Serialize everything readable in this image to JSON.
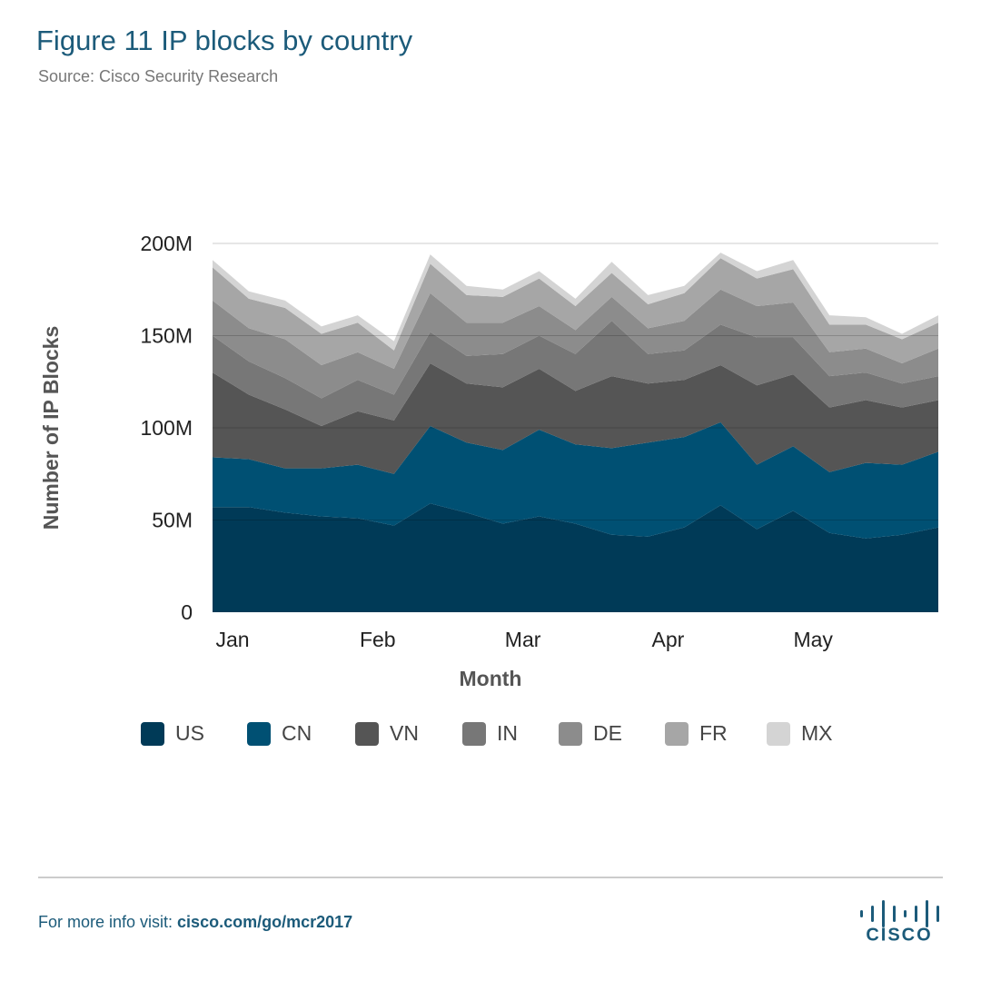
{
  "chart_data": {
    "type": "stacked_area",
    "title": "Figure 11  IP blocks by country",
    "subtitle": "Source: Cisco Security Research",
    "x_label": "Month",
    "y_label": "Number of IP Blocks",
    "categories": [
      "Jan",
      null,
      null,
      null,
      "Feb",
      null,
      null,
      null,
      "Mar",
      null,
      null,
      null,
      "Apr",
      null,
      null,
      null,
      "May",
      null,
      null,
      null,
      null
    ],
    "series": [
      {
        "name": "US",
        "color": "#003a57",
        "values": [
          57000000,
          57000000,
          54000000,
          52000000,
          51000000,
          47000000,
          59000000,
          54000000,
          48000000,
          52000000,
          48000000,
          42000000,
          41000000,
          46000000,
          58000000,
          45000000,
          55000000,
          43000000,
          40000000,
          42000000,
          46000000
        ]
      },
      {
        "name": "CN",
        "color": "#005073",
        "values": [
          27000000,
          26000000,
          24000000,
          26000000,
          29000000,
          28000000,
          42000000,
          38000000,
          40000000,
          47000000,
          43000000,
          47000000,
          51000000,
          49000000,
          45000000,
          35000000,
          35000000,
          33000000,
          41000000,
          38000000,
          41000000
        ]
      },
      {
        "name": "VN",
        "color": "#555555",
        "values": [
          46000000,
          35000000,
          32000000,
          23000000,
          29000000,
          29000000,
          34000000,
          32000000,
          34000000,
          33000000,
          29000000,
          39000000,
          32000000,
          31000000,
          31000000,
          43000000,
          39000000,
          35000000,
          34000000,
          31000000,
          28000000
        ]
      },
      {
        "name": "IN",
        "color": "#777777",
        "values": [
          20000000,
          18000000,
          17000000,
          15000000,
          17000000,
          14000000,
          17000000,
          15000000,
          18000000,
          18000000,
          20000000,
          30000000,
          16000000,
          16000000,
          22000000,
          26000000,
          20000000,
          17000000,
          15000000,
          13000000,
          13000000
        ]
      },
      {
        "name": "DE",
        "color": "#8c8c8c",
        "values": [
          19000000,
          18000000,
          21000000,
          18000000,
          15000000,
          14000000,
          21000000,
          18000000,
          17000000,
          16000000,
          13000000,
          13000000,
          14000000,
          16000000,
          19000000,
          17000000,
          19000000,
          13000000,
          13000000,
          11000000,
          15000000
        ]
      },
      {
        "name": "FR",
        "color": "#a6a6a6",
        "values": [
          18000000,
          16000000,
          17000000,
          17000000,
          16000000,
          10000000,
          16000000,
          15000000,
          14000000,
          15000000,
          13000000,
          13000000,
          13000000,
          15000000,
          17000000,
          15000000,
          18000000,
          15000000,
          13000000,
          13000000,
          14000000
        ]
      },
      {
        "name": "MX",
        "color": "#d4d4d4",
        "values": [
          4000000,
          4000000,
          4000000,
          4000000,
          4000000,
          5000000,
          5000000,
          5000000,
          4000000,
          4000000,
          4000000,
          6000000,
          5000000,
          4000000,
          3000000,
          4000000,
          5000000,
          5000000,
          4000000,
          3000000,
          4000000
        ]
      }
    ],
    "ylim": [
      0,
      200000000
    ],
    "yticks": [
      0,
      {
        "value": 50000000,
        "label": "50M"
      },
      {
        "value": 100000000,
        "label": "100M"
      },
      {
        "value": 150000000,
        "label": "150M"
      },
      {
        "value": 200000000,
        "label": "200M"
      }
    ],
    "grid": true,
    "legend": "bottom"
  },
  "footer": {
    "prefix": "For more info visit: ",
    "link": "cisco.com/go/mcr2017",
    "logo_text": "CISCO"
  }
}
